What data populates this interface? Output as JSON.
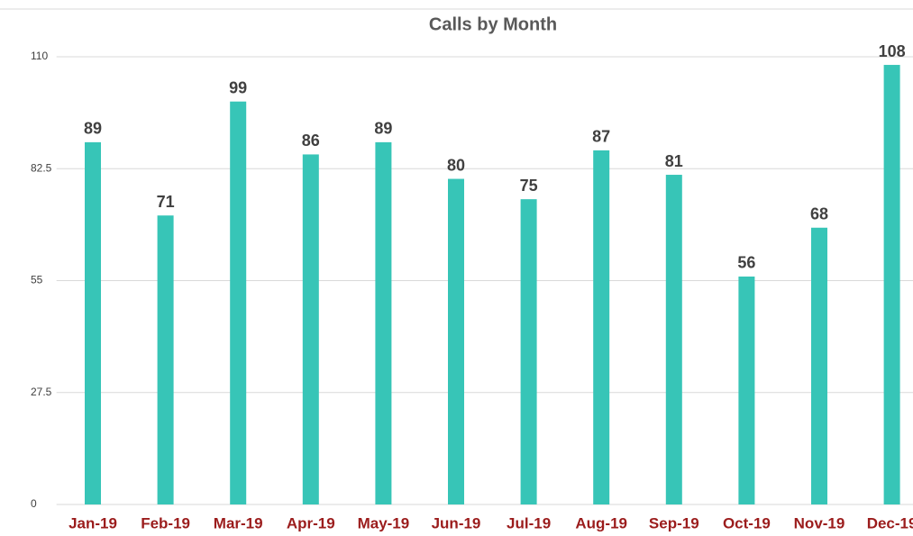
{
  "chart_data": {
    "type": "bar",
    "title": "Calls by Month",
    "categories": [
      "Jan-19",
      "Feb-19",
      "Mar-19",
      "Apr-19",
      "May-19",
      "Jun-19",
      "Jul-19",
      "Aug-19",
      "Sep-19",
      "Oct-19",
      "Nov-19",
      "Dec-19"
    ],
    "values": [
      89,
      71,
      99,
      86,
      89,
      80,
      75,
      87,
      81,
      56,
      68,
      108
    ],
    "color": "#37c5b7",
    "ylim": [
      0,
      110
    ],
    "yticks": [
      0,
      27.5,
      55,
      82.5,
      110
    ],
    "grid": true
  }
}
